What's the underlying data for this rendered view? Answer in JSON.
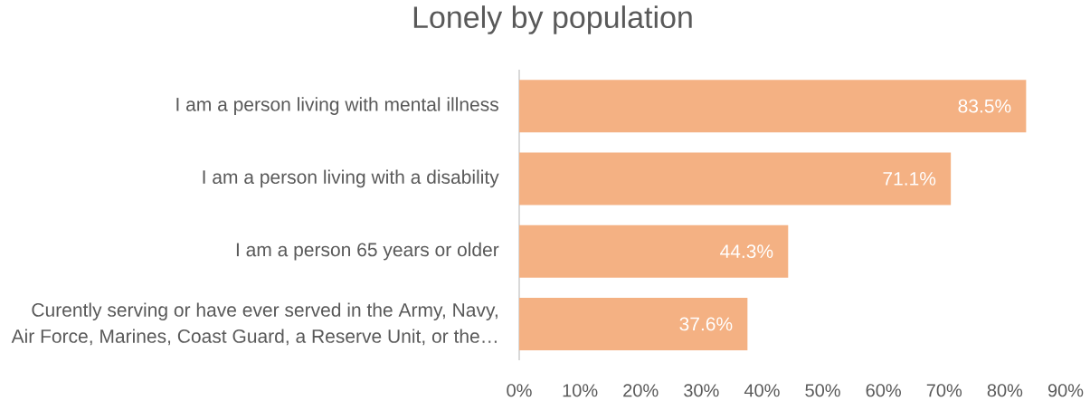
{
  "chart_data": {
    "type": "bar",
    "orientation": "horizontal",
    "title": "Lonely by population",
    "categories": [
      "I am a person living with mental illness",
      "I am a person living with a disability",
      "I am a person 65 years or older",
      "Curently serving or have ever served in the Army, Navy, Air Force, Marines, Coast Guard, a Reserve Unit, or the…"
    ],
    "values": [
      83.5,
      71.1,
      44.3,
      37.6
    ],
    "value_labels": [
      "83.5%",
      "71.1%",
      "44.3%",
      "37.6%"
    ],
    "color": "#f4b183",
    "xlim": [
      0,
      90
    ],
    "xticks": [
      {
        "value": 0,
        "label": "0%"
      },
      {
        "value": 10,
        "label": "10%"
      },
      {
        "value": 20,
        "label": "20%"
      },
      {
        "value": 30,
        "label": "30%"
      },
      {
        "value": 40,
        "label": "40%"
      },
      {
        "value": 50,
        "label": "50%"
      },
      {
        "value": 60,
        "label": "60%"
      },
      {
        "value": 70,
        "label": "70%"
      },
      {
        "value": 80,
        "label": "80%"
      },
      {
        "value": 90,
        "label": "90%"
      }
    ]
  }
}
